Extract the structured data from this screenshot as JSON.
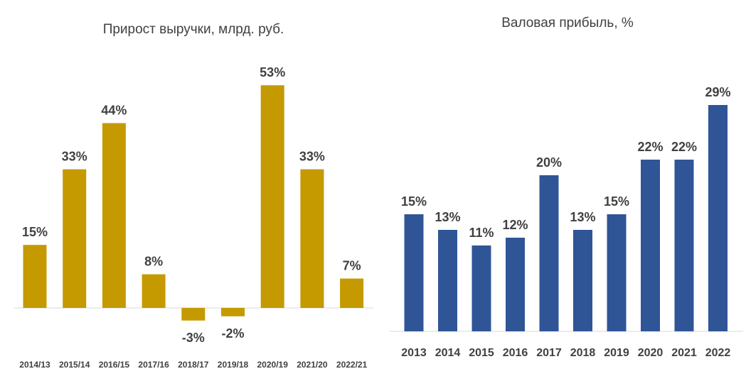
{
  "chart_data": [
    {
      "type": "bar",
      "title": "Прирост выручки, млрд. руб.",
      "categories": [
        "2014/13",
        "2015/14",
        "2016/15",
        "2017/16",
        "2018/17",
        "2019/18",
        "2020/19",
        "2021/20",
        "2022/21"
      ],
      "values": [
        15,
        33,
        44,
        8,
        -3,
        -2,
        53,
        33,
        7
      ],
      "data_labels": [
        "15%",
        "33%",
        "44%",
        "8%",
        "-3%",
        "-2%",
        "53%",
        "33%",
        "7%"
      ],
      "ylim": [
        -3,
        53
      ],
      "grid": false,
      "legend": "none",
      "color": "#C49A00"
    },
    {
      "type": "bar",
      "title": "Валовая прибыль, %",
      "categories": [
        "2013",
        "2014",
        "2015",
        "2016",
        "2017",
        "2018",
        "2019",
        "2020",
        "2021",
        "2022"
      ],
      "values": [
        15,
        13,
        11,
        12,
        20,
        13,
        15,
        22,
        22,
        29
      ],
      "data_labels": [
        "15%",
        "13%",
        "11%",
        "12%",
        "20%",
        "13%",
        "15%",
        "22%",
        "22%",
        "29%"
      ],
      "ylim": [
        0,
        29
      ],
      "grid": false,
      "legend": "none",
      "color": "#2F5597"
    }
  ]
}
